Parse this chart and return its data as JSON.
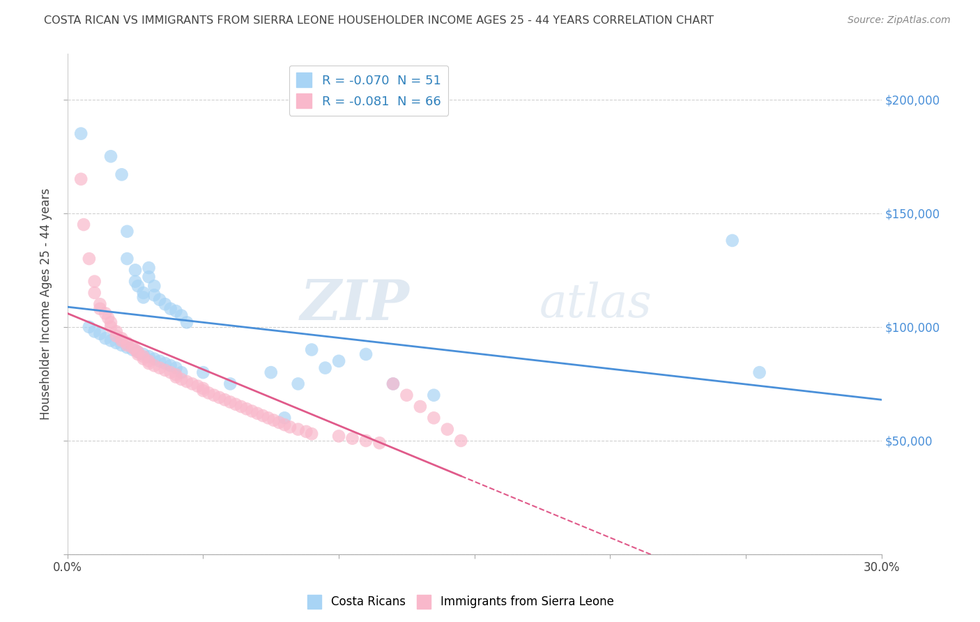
{
  "title": "COSTA RICAN VS IMMIGRANTS FROM SIERRA LEONE HOUSEHOLDER INCOME AGES 25 - 44 YEARS CORRELATION CHART",
  "source": "Source: ZipAtlas.com",
  "ylabel": "Householder Income Ages 25 - 44 years",
  "xlim": [
    0.0,
    0.3
  ],
  "ylim": [
    0,
    220000
  ],
  "xticks": [
    0.0,
    0.05,
    0.1,
    0.15,
    0.2,
    0.25,
    0.3
  ],
  "xtick_labels": [
    "0.0%",
    "",
    "",
    "",
    "",
    "",
    "30.0%"
  ],
  "yticks": [
    0,
    50000,
    100000,
    150000,
    200000
  ],
  "ytick_labels": [
    "",
    "$50,000",
    "$100,000",
    "$150,000",
    "$200,000"
  ],
  "legend1_label": "R = -0.070  N = 51",
  "legend2_label": "R = -0.081  N = 66",
  "blue_color": "#a8d4f5",
  "pink_color": "#f9b8cb",
  "blue_line_color": "#4a90d9",
  "pink_line_color": "#e05a8a",
  "watermark_zip": "ZIP",
  "watermark_atlas": "atlas",
  "background_color": "#ffffff",
  "grid_color": "#d0d0d0",
  "blue_scatter_x": [
    0.005,
    0.016,
    0.02,
    0.022,
    0.022,
    0.025,
    0.025,
    0.026,
    0.028,
    0.028,
    0.03,
    0.03,
    0.032,
    0.032,
    0.034,
    0.036,
    0.038,
    0.04,
    0.042,
    0.044,
    0.008,
    0.01,
    0.012,
    0.014,
    0.016,
    0.018,
    0.02,
    0.022,
    0.024,
    0.026,
    0.028,
    0.03,
    0.032,
    0.034,
    0.036,
    0.038,
    0.04,
    0.042,
    0.05,
    0.06,
    0.075,
    0.085,
    0.09,
    0.095,
    0.1,
    0.11,
    0.12,
    0.135,
    0.245,
    0.255,
    0.08
  ],
  "blue_scatter_y": [
    185000,
    175000,
    167000,
    142000,
    130000,
    125000,
    120000,
    118000,
    115000,
    113000,
    126000,
    122000,
    118000,
    114000,
    112000,
    110000,
    108000,
    107000,
    105000,
    102000,
    100000,
    98000,
    97000,
    95000,
    94000,
    93000,
    92000,
    91000,
    90000,
    89000,
    88000,
    87000,
    86000,
    85000,
    84000,
    83000,
    82000,
    80000,
    80000,
    75000,
    80000,
    75000,
    90000,
    82000,
    85000,
    88000,
    75000,
    70000,
    138000,
    80000,
    60000
  ],
  "pink_scatter_x": [
    0.005,
    0.006,
    0.008,
    0.01,
    0.01,
    0.012,
    0.012,
    0.014,
    0.015,
    0.016,
    0.016,
    0.018,
    0.018,
    0.02,
    0.02,
    0.022,
    0.022,
    0.024,
    0.025,
    0.026,
    0.026,
    0.028,
    0.028,
    0.03,
    0.03,
    0.032,
    0.034,
    0.036,
    0.038,
    0.04,
    0.04,
    0.042,
    0.044,
    0.046,
    0.048,
    0.05,
    0.05,
    0.052,
    0.054,
    0.056,
    0.058,
    0.06,
    0.062,
    0.064,
    0.066,
    0.068,
    0.07,
    0.072,
    0.074,
    0.076,
    0.078,
    0.08,
    0.082,
    0.085,
    0.088,
    0.09,
    0.1,
    0.105,
    0.11,
    0.115,
    0.12,
    0.125,
    0.13,
    0.135,
    0.14,
    0.145
  ],
  "pink_scatter_y": [
    165000,
    145000,
    130000,
    120000,
    115000,
    110000,
    108000,
    106000,
    104000,
    102000,
    100000,
    98000,
    96000,
    94000,
    95000,
    93000,
    92000,
    91000,
    90000,
    89000,
    88000,
    87000,
    86000,
    85000,
    84000,
    83000,
    82000,
    81000,
    80000,
    79000,
    78000,
    77000,
    76000,
    75000,
    74000,
    73000,
    72000,
    71000,
    70000,
    69000,
    68000,
    67000,
    66000,
    65000,
    64000,
    63000,
    62000,
    61000,
    60000,
    59000,
    58000,
    57000,
    56000,
    55000,
    54000,
    53000,
    52000,
    51000,
    50000,
    49000,
    75000,
    70000,
    65000,
    60000,
    55000,
    50000
  ]
}
